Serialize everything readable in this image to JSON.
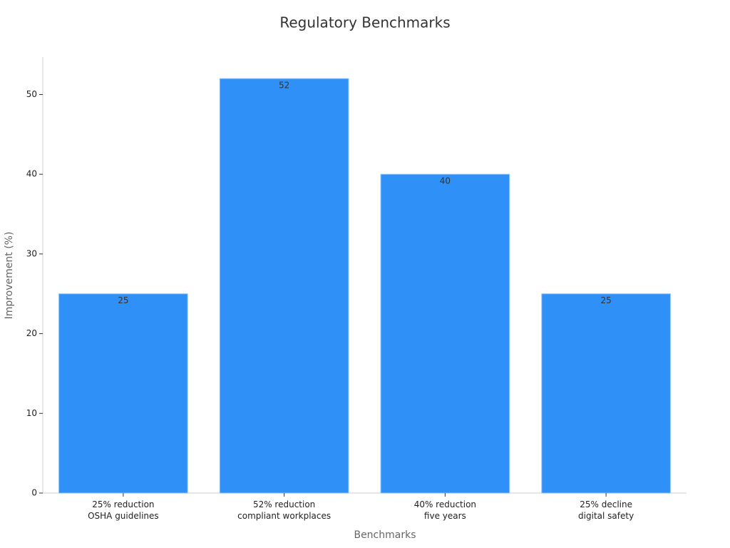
{
  "chart_data": {
    "type": "bar",
    "title": "Regulatory Benchmarks",
    "x_label": "Benchmarks",
    "y_label": "Improvement (%)",
    "categories": [
      "25% reduction\nOSHA guidelines",
      "52% reduction\ncompliant workplaces",
      "40% reduction\nfive years",
      "25% decline\ndigital safety"
    ],
    "values": [
      25,
      52,
      40,
      25
    ],
    "color": "#2f91f7",
    "ylim": [
      0,
      54.7
    ],
    "yticks": [
      0,
      10,
      20,
      30,
      40,
      50
    ],
    "grid": false
  }
}
